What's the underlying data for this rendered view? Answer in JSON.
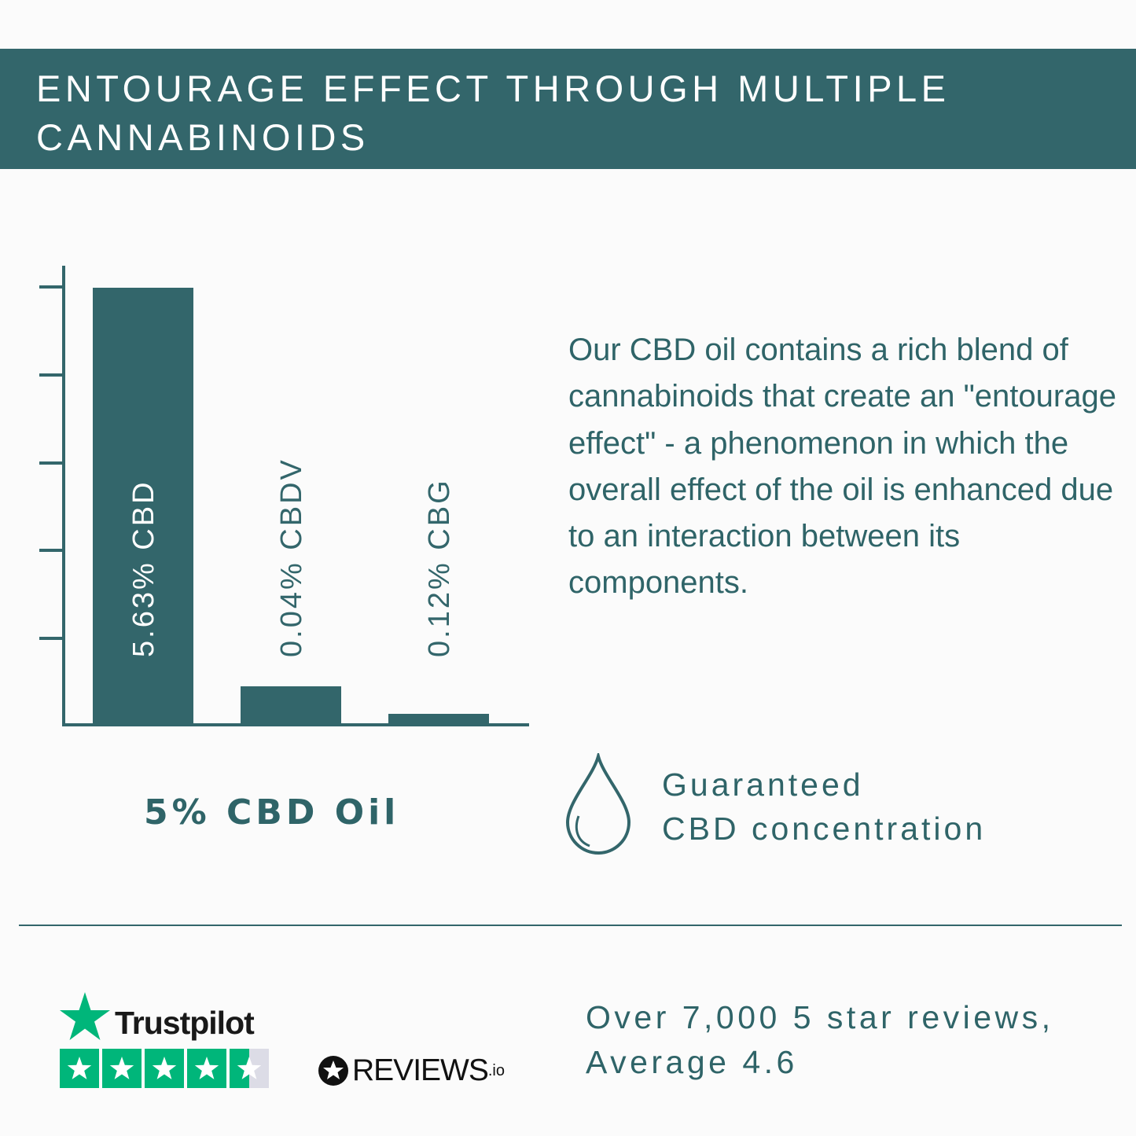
{
  "header": {
    "title": "Entourage effect through multiple cannabinoids"
  },
  "colors": {
    "brand_teal": "#33666b",
    "trustpilot_green": "#00b67a"
  },
  "chart_data": {
    "type": "bar",
    "categories": [
      "CBD",
      "CBDV",
      "CBG"
    ],
    "values": [
      5.63,
      0.04,
      0.12
    ],
    "bar_labels": [
      "5.63% CBD",
      "0.04% CBDV",
      "0.12% CBG"
    ],
    "xlabel": "5% CBD Oil",
    "ylabel": "",
    "y_tick_labels": false,
    "grid": false
  },
  "description": "Our CBD oil contains a rich blend of cannabinoids that create an \"entourage effect\" - a phenomenon in which the overall effect of the oil is enhanced due to an interaction between its components.",
  "guarantee": {
    "icon": "droplet-icon",
    "line1": "Guaranteed",
    "line2": "CBD concentration"
  },
  "trustpilot": {
    "name": "Trustpilot",
    "rating_stars": 4.5
  },
  "reviewsio": {
    "name": "REVIEWS",
    "suffix": ".io"
  },
  "reviews_summary": {
    "line1": "Over 7,000 5 star reviews,",
    "line2": "Average 4.6"
  }
}
